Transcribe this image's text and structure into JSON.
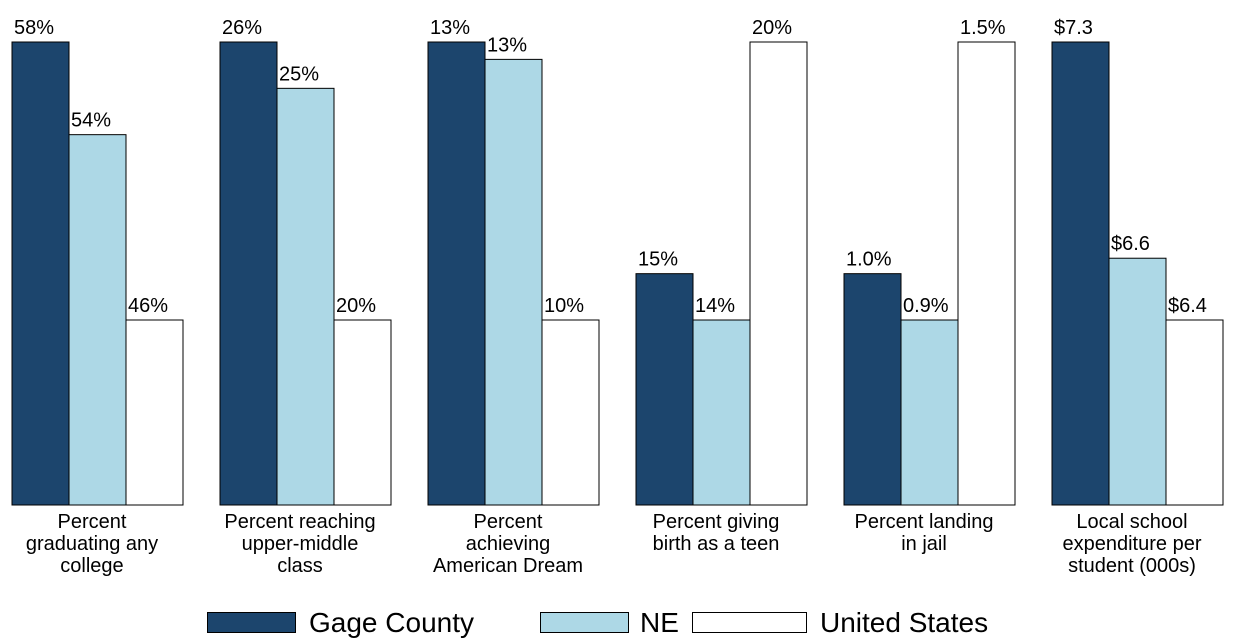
{
  "chart_data": {
    "type": "bar",
    "categories": [
      "Percent\ngraduating any\ncollege",
      "Percent reaching\nupper-middle\nclass",
      "Percent\nachieving\nAmerican Dream",
      "Percent giving\nbirth as a teen",
      "Percent landing\nin jail",
      "Local school\nexpenditure per\nstudent (000s)"
    ],
    "series": [
      {
        "name": "Gage County",
        "color": "#1c456d",
        "values": [
          58,
          26,
          13.2,
          15,
          1.0,
          7.3
        ],
        "value_labels": [
          "58%",
          "26%",
          "13%",
          "15%",
          "1.0%",
          "$7.3"
        ]
      },
      {
        "name": "NE",
        "color": "#add8e6",
        "values": [
          54,
          25,
          13.0,
          14,
          0.9,
          6.6
        ],
        "value_labels": [
          "54%",
          "25%",
          "13%",
          "14%",
          "0.9%",
          "$6.6"
        ]
      },
      {
        "name": "United States",
        "color": "#ffffff",
        "values": [
          46,
          20,
          10,
          20,
          1.5,
          6.4
        ],
        "value_labels": [
          "46%",
          "20%",
          "10%",
          "20%",
          "1.5%",
          "$6.4"
        ]
      }
    ],
    "legend": "bottom"
  }
}
